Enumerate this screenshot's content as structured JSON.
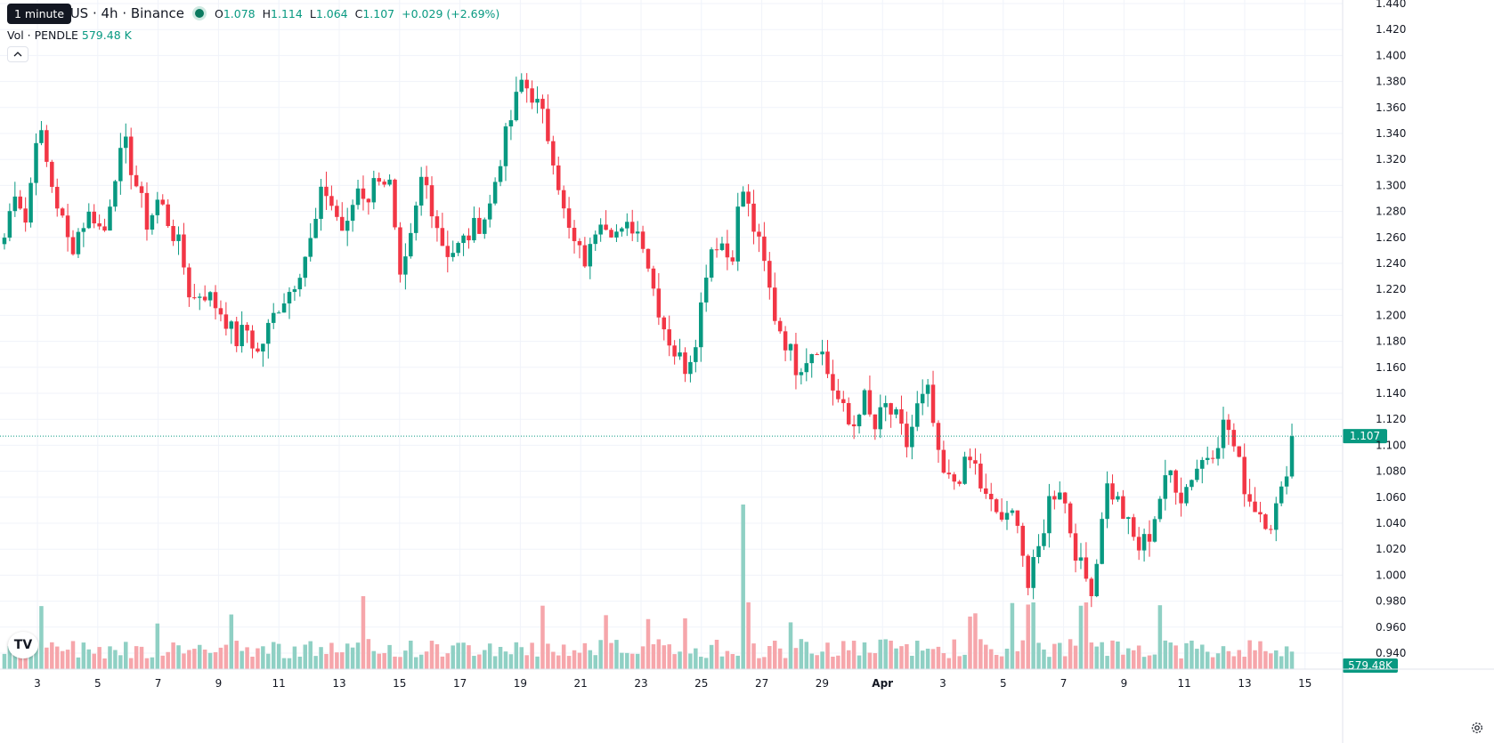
{
  "legend": {
    "symbol": "E / TetherUS · 4h · Binance",
    "open_label": "O",
    "open": "1.078",
    "high_label": "H",
    "high": "1.114",
    "low_label": "L",
    "low": "1.064",
    "close_label": "C",
    "close": "1.107",
    "change": "+0.029 (+2.69%)"
  },
  "tooltip": "1 minute",
  "volume_legend": {
    "label": "Vol · PENDLE",
    "value": "579.48 K"
  },
  "collapse_icon": "chevron-up-icon",
  "logo_text": "TV",
  "settings_icon": "gear-icon",
  "colors": {
    "up": "#089981",
    "down": "#f23645",
    "up_vol": "#8fd0c4",
    "down_vol": "#f6a6ab"
  },
  "chart_data": {
    "type": "candlestick",
    "ylim": [
      0.93,
      1.445
    ],
    "y_ticks": [
      "1.440",
      "1.420",
      "1.400",
      "1.380",
      "1.360",
      "1.340",
      "1.320",
      "1.300",
      "1.280",
      "1.260",
      "1.240",
      "1.220",
      "1.200",
      "1.180",
      "1.160",
      "1.140",
      "1.120",
      "1.100",
      "1.080",
      "1.060",
      "1.040",
      "1.020",
      "1.000",
      "0.980",
      "0.960",
      "0.940"
    ],
    "x_ticks": [
      "3",
      "5",
      "7",
      "9",
      "11",
      "13",
      "15",
      "17",
      "19",
      "21",
      "23",
      "25",
      "27",
      "29",
      "Apr",
      "3",
      "5",
      "7",
      "9",
      "11",
      "13",
      "15"
    ],
    "last_price": 1.107,
    "last_price_label": "1.107",
    "last_volume_label": "579.48K",
    "close_path": [
      1.26,
      1.3,
      1.27,
      1.35,
      1.31,
      1.28,
      1.25,
      1.27,
      1.28,
      1.26,
      1.31,
      1.33,
      1.3,
      1.27,
      1.29,
      1.27,
      1.25,
      1.21,
      1.22,
      1.21,
      1.2,
      1.18,
      1.19,
      1.17,
      1.19,
      1.21,
      1.22,
      1.24,
      1.26,
      1.3,
      1.28,
      1.26,
      1.3,
      1.29,
      1.31,
      1.3,
      1.22,
      1.26,
      1.31,
      1.28,
      1.25,
      1.25,
      1.26,
      1.27,
      1.28,
      1.32,
      1.35,
      1.38,
      1.37,
      1.35,
      1.32,
      1.27,
      1.25,
      1.24,
      1.28,
      1.27,
      1.26,
      1.27,
      1.26,
      1.22,
      1.19,
      1.17,
      1.16,
      1.19,
      1.25,
      1.26,
      1.24,
      1.3,
      1.27,
      1.24,
      1.2,
      1.18,
      1.16,
      1.17,
      1.18,
      1.15,
      1.13,
      1.11,
      1.14,
      1.11,
      1.13,
      1.12,
      1.1,
      1.13,
      1.14,
      1.08,
      1.07,
      1.08,
      1.09,
      1.06,
      1.05,
      1.04,
      1.05,
      0.99,
      1.02,
      1.06,
      1.07,
      1.03,
      1.0,
      0.99,
      1.07,
      1.06,
      1.04,
      1.02,
      1.03,
      1.06,
      1.08,
      1.06,
      1.08,
      1.09,
      1.1,
      1.12,
      1.09,
      1.06,
      1.05,
      1.04,
      1.06,
      1.107
    ],
    "volume_max": 120,
    "volume_labels": "none"
  }
}
